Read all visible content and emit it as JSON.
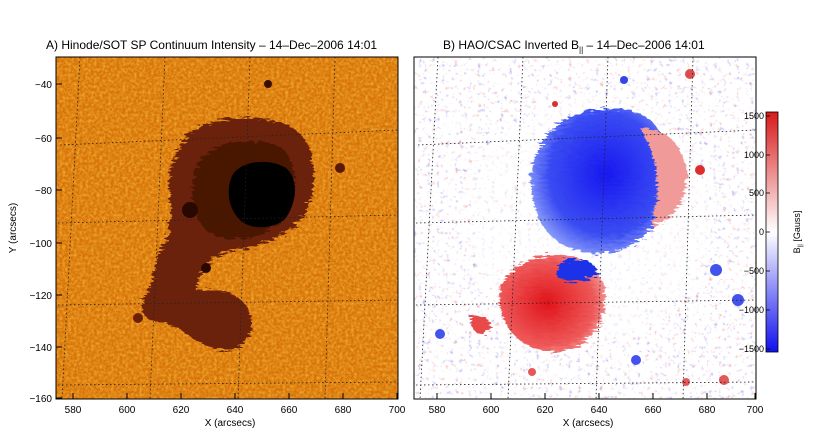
{
  "panel_a": {
    "title": "A) Hinode/SOT SP Continuum Intensity – 14–Dec–2006 14:01",
    "xlabel": "X (arcsecs)",
    "ylabel": "Y (arcsecs)",
    "xticks": [
      "580",
      "600",
      "620",
      "640",
      "660",
      "680",
      "700"
    ],
    "yticks": [
      "−40",
      "−60",
      "−80",
      "−100",
      "−120",
      "−140",
      "−160"
    ]
  },
  "panel_b": {
    "title_prefix": "B) HAO/CSAC Inverted B",
    "title_sub": "||",
    "title_suffix": " – 14–Dec–2006 14:01",
    "xlabel": "X (arcsecs)",
    "xticks": [
      "580",
      "600",
      "620",
      "640",
      "660",
      "680",
      "700"
    ]
  },
  "colorbar": {
    "label_prefix": "B",
    "label_sub": "||",
    "label_suffix": " [Gauss]",
    "ticks": [
      "1500",
      "1000",
      "500",
      "0",
      "−500",
      "−1000",
      "−1500"
    ],
    "colors": {
      "positive": "#d81a1a",
      "zero": "#ffffff",
      "negative": "#1010ee"
    }
  },
  "colors": {
    "continuum_bg": "#d8740a",
    "umbra": "#000000",
    "penumbra": "#5a1c06"
  }
}
